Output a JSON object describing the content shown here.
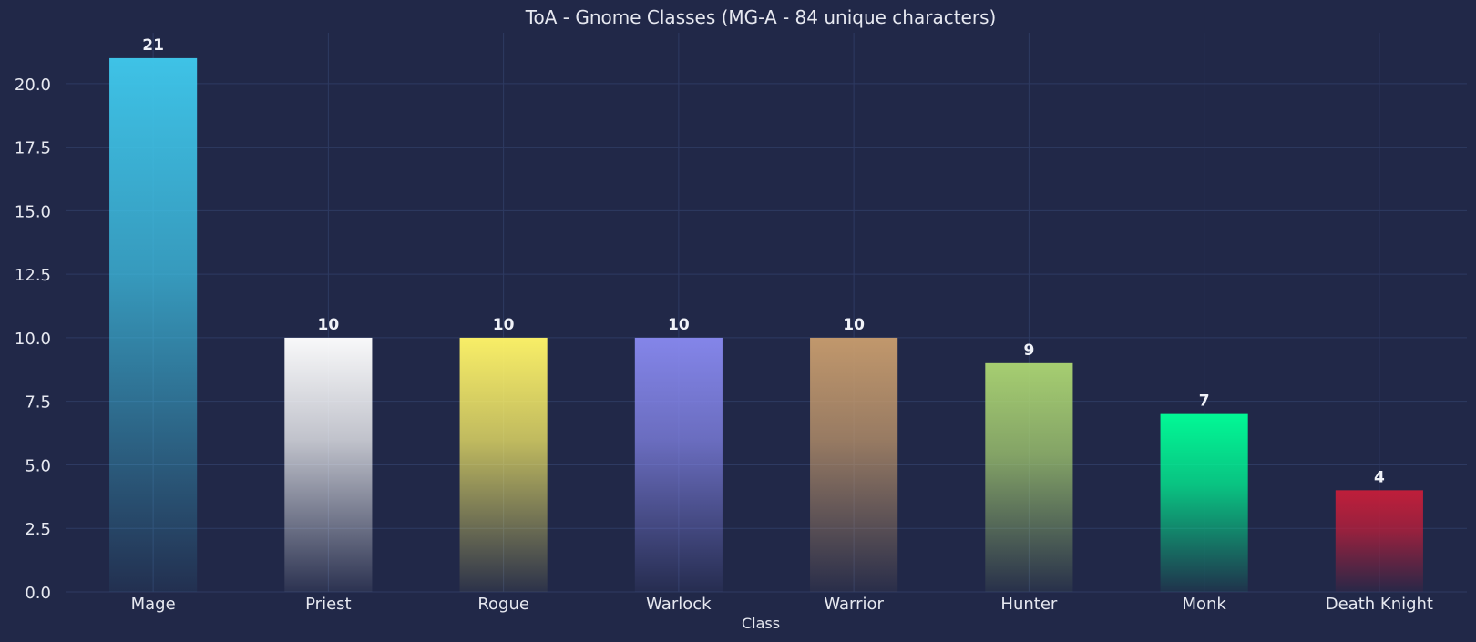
{
  "chart_data": {
    "type": "bar",
    "title": "ToA - Gnome Classes (MG-A - 84 unique characters)",
    "xlabel": "Class",
    "ylabel": "",
    "categories": [
      "Mage",
      "Priest",
      "Rogue",
      "Warlock",
      "Warrior",
      "Hunter",
      "Monk",
      "Death Knight"
    ],
    "values": [
      21,
      10,
      10,
      10,
      10,
      9,
      7,
      4
    ],
    "colors": [
      "#3FC7EB",
      "#FFFFFF",
      "#FFF468",
      "#8788EE",
      "#C69B6D",
      "#AAD372",
      "#00FF98",
      "#C41E3A"
    ],
    "value_labels": [
      "21",
      "10",
      "10",
      "10",
      "10",
      "9",
      "7",
      "4"
    ],
    "ylim": [
      0,
      22
    ],
    "yticks": [
      "0.0",
      "2.5",
      "5.0",
      "7.5",
      "10.0",
      "12.5",
      "15.0",
      "17.5",
      "20.0"
    ],
    "grid": true,
    "legend": "none",
    "background": "#212848"
  }
}
